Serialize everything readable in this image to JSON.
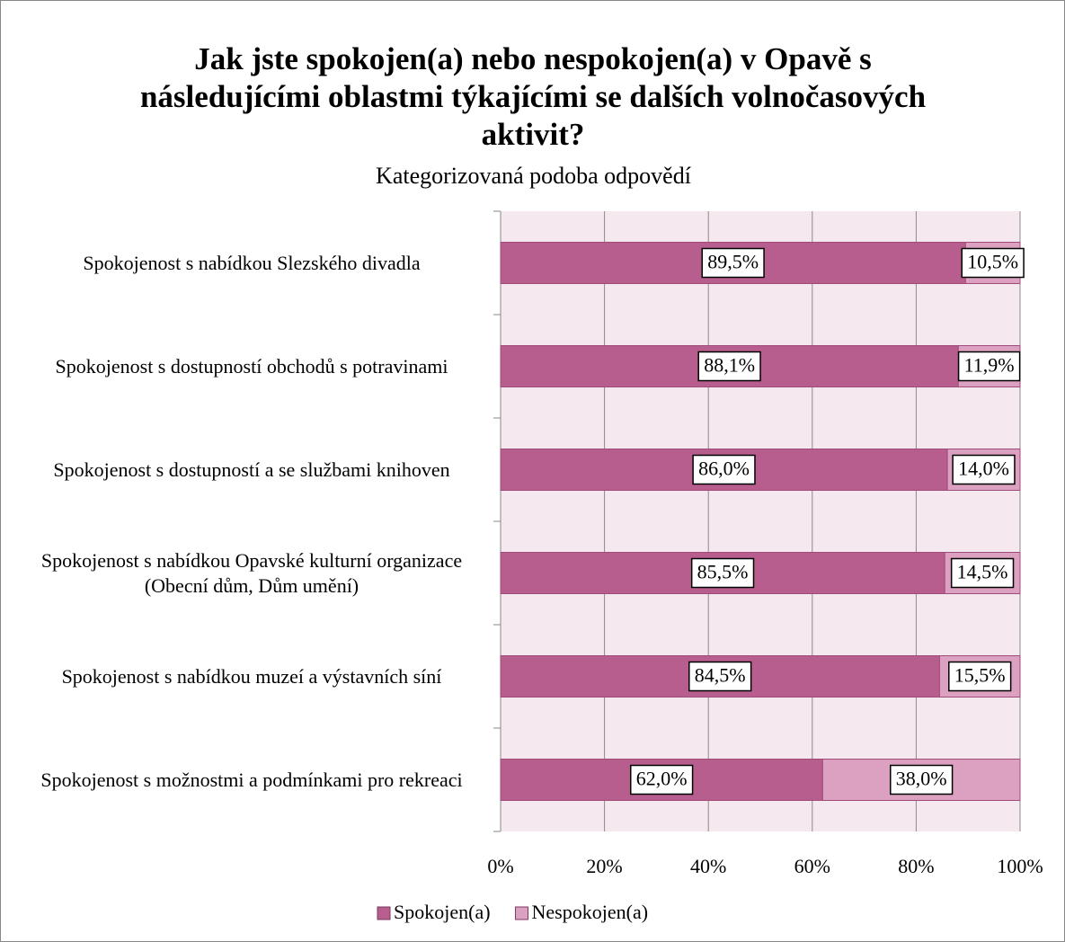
{
  "chart_data": {
    "type": "stacked_barh",
    "title": "Jak jste spokojen(a) nebo nespokojen(a) v Opavě s následujícími oblastmi týkajícími se dalších volnočasových aktivit?",
    "subtitle": "Kategorizovaná podoba odpovědí",
    "categories": [
      "Spokojenost s nabídkou Slezského divadla",
      "Spokojenost s dostupností obchodů s potravinami",
      "Spokojenost s dostupností a se službami knihoven",
      "Spokojenost s nabídkou Opavské kulturní organizace (Obecní dům, Dům umění)",
      "Spokojenost s nabídkou muzeí a výstavních síní",
      "Spokojenost s možnostmi a podmínkami pro rekreaci"
    ],
    "series": [
      {
        "name": "Spokojen(a)",
        "color": "#b85e8f",
        "values": [
          89.5,
          88.1,
          86.0,
          85.5,
          84.5,
          62.0
        ],
        "value_labels": [
          "89,5%",
          "88,1%",
          "86,0%",
          "85,5%",
          "84,5%",
          "62,0%"
        ]
      },
      {
        "name": "Nespokojen(a)",
        "color": "#dca0c0",
        "values": [
          10.5,
          11.9,
          14.0,
          14.5,
          15.5,
          38.0
        ],
        "value_labels": [
          "10,5%",
          "11,9%",
          "14,0%",
          "14,5%",
          "15,5%",
          "38,0%"
        ]
      }
    ],
    "xlim": [
      0,
      100
    ],
    "xticks": [
      {
        "value": 0,
        "label": "0%"
      },
      {
        "value": 20,
        "label": "20%"
      },
      {
        "value": 40,
        "label": "40%"
      },
      {
        "value": 60,
        "label": "60%"
      },
      {
        "value": 80,
        "label": "80%"
      },
      {
        "value": 100,
        "label": "100%"
      }
    ],
    "grid": true,
    "legend": "bottom"
  }
}
